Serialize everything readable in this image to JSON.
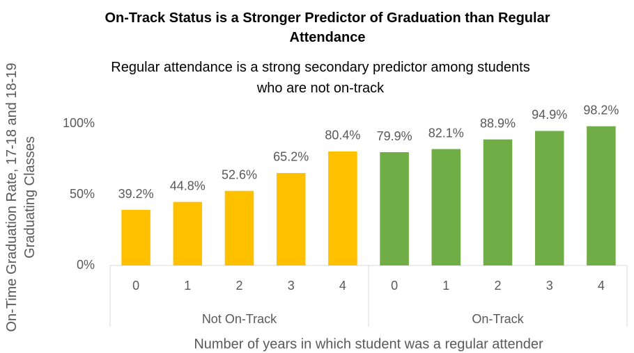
{
  "chart_data": {
    "type": "bar",
    "title": "On-Track Status is a Stronger Predictor of Graduation than Regular Attendance",
    "subtitle": "Regular attendance is a strong secondary predictor among students who are not on-track",
    "x_label": "Number of years in which student was a regular attender",
    "y_label": "On-Time Graduation Rate, 17-18 and 18-19 Graduating Classes",
    "ylim": [
      0,
      100
    ],
    "yticks": [
      {
        "value": 0,
        "label": "0%"
      },
      {
        "value": 50,
        "label": "50%"
      },
      {
        "value": 100,
        "label": "100%"
      }
    ],
    "grid": false,
    "series": [
      {
        "name": "Not On-Track",
        "color": "#FFC000",
        "categories": [
          "0",
          "1",
          "2",
          "3",
          "4"
        ],
        "values": [
          39.2,
          44.8,
          52.6,
          65.2,
          80.4
        ],
        "value_labels": [
          "39.2%",
          "44.8%",
          "52.6%",
          "65.2%",
          "80.4%"
        ]
      },
      {
        "name": "On-Track",
        "color": "#70AD47",
        "categories": [
          "0",
          "1",
          "2",
          "3",
          "4"
        ],
        "values": [
          79.9,
          82.1,
          88.9,
          94.9,
          98.2
        ],
        "value_labels": [
          "79.9%",
          "82.1%",
          "88.9%",
          "94.9%",
          "98.2%"
        ]
      }
    ]
  }
}
